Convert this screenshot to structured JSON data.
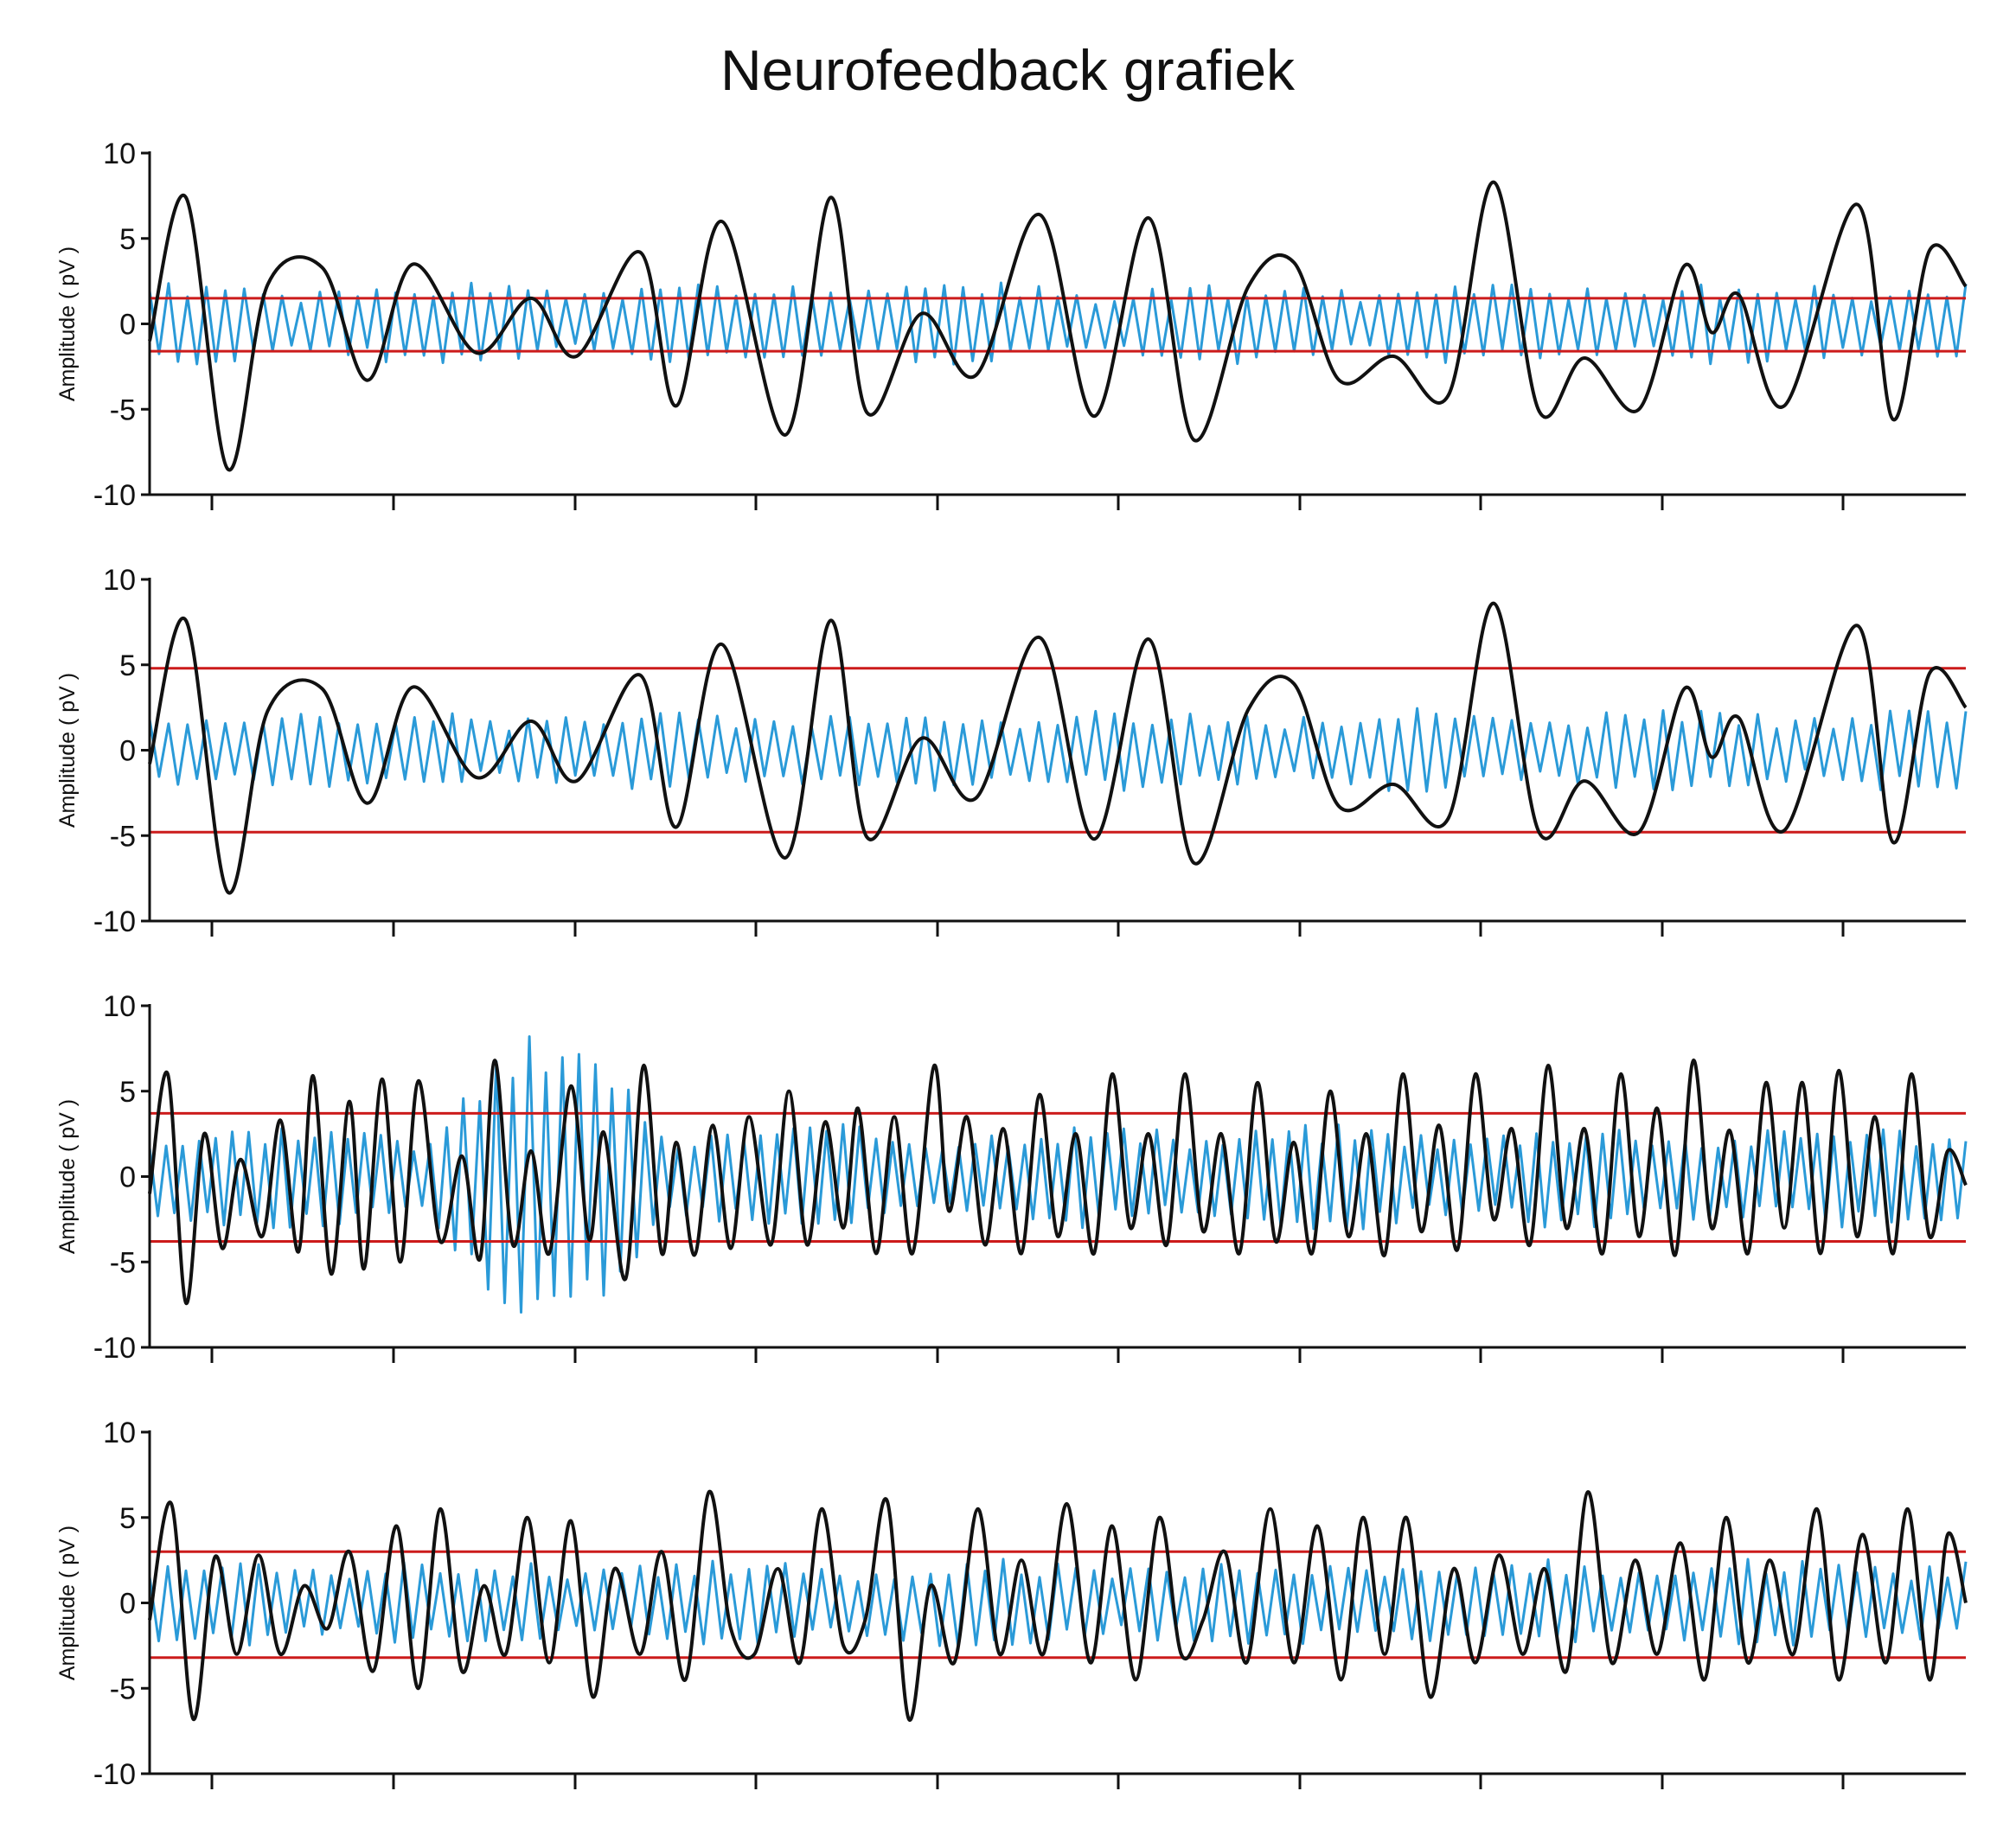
{
  "title": "Neurofeedback grafiek",
  "colors": {
    "raw_signal": "#2a9ad8",
    "filtered_signal": "#111111",
    "threshold": "#cc1b1b",
    "axis": "#111111"
  },
  "chart_data": [
    {
      "type": "line",
      "ylabel": "Amplitude ( pV )",
      "ylim": [
        -10,
        10
      ],
      "yticks": [
        "10",
        "5",
        "0",
        "-5",
        "-10"
      ],
      "xlim": [
        0,
        1
      ],
      "x_tick_count": 10,
      "thresholds": [
        1.5,
        -1.6
      ],
      "series": [
        {
          "role": "raw",
          "amplitude": 1.4,
          "peak_amplitude": 2.6,
          "cycles": 96,
          "seed": 1
        },
        {
          "role": "filtered",
          "x": [
            0.0,
            0.02,
            0.043,
            0.065,
            0.095,
            0.12,
            0.145,
            0.18,
            0.21,
            0.235,
            0.27,
            0.29,
            0.315,
            0.35,
            0.375,
            0.395,
            0.425,
            0.455,
            0.49,
            0.52,
            0.55,
            0.575,
            0.605,
            0.63,
            0.655,
            0.685,
            0.715,
            0.74,
            0.765,
            0.79,
            0.82,
            0.845,
            0.86,
            0.875,
            0.9,
            0.94,
            0.96,
            0.98,
            1.0
          ],
          "y": [
            -1.0,
            7.4,
            -8.5,
            2.3,
            3.3,
            -3.3,
            3.5,
            -1.7,
            1.5,
            -1.9,
            4.2,
            -4.8,
            6.0,
            -6.5,
            7.4,
            -5.2,
            0.6,
            -3.0,
            6.4,
            -5.4,
            6.2,
            -6.8,
            2.2,
            3.6,
            -3.3,
            -1.9,
            -4.2,
            8.3,
            -5.1,
            -2.0,
            -5.0,
            3.4,
            -0.5,
            1.7,
            -4.8,
            7.0,
            -5.6,
            4.3,
            2.2
          ]
        }
      ]
    },
    {
      "type": "line",
      "ylabel": "Amplitude ( pV )",
      "ylim": [
        -10,
        10
      ],
      "yticks": [
        "10",
        "5",
        "0",
        "-5",
        "-10"
      ],
      "xlim": [
        0,
        1
      ],
      "x_tick_count": 10,
      "thresholds": [
        4.8,
        -4.8
      ],
      "series": [
        {
          "role": "raw",
          "amplitude": 1.4,
          "peak_amplitude": 2.6,
          "cycles": 96,
          "seed": 2
        },
        {
          "role": "filtered",
          "x": [
            0.0,
            0.02,
            0.043,
            0.065,
            0.095,
            0.12,
            0.145,
            0.18,
            0.21,
            0.235,
            0.27,
            0.29,
            0.315,
            0.35,
            0.375,
            0.395,
            0.425,
            0.455,
            0.49,
            0.52,
            0.55,
            0.575,
            0.605,
            0.63,
            0.655,
            0.685,
            0.715,
            0.74,
            0.765,
            0.79,
            0.82,
            0.845,
            0.86,
            0.875,
            0.9,
            0.94,
            0.96,
            0.98,
            1.0
          ],
          "y": [
            -0.8,
            7.6,
            -8.3,
            2.3,
            3.6,
            -3.1,
            3.7,
            -1.6,
            1.7,
            -1.8,
            4.4,
            -4.5,
            6.2,
            -6.3,
            7.6,
            -5.1,
            0.7,
            -2.8,
            6.6,
            -5.2,
            6.5,
            -6.6,
            2.4,
            3.9,
            -3.3,
            -2.0,
            -4.0,
            8.6,
            -4.8,
            -1.8,
            -4.8,
            3.6,
            -0.4,
            1.9,
            -4.7,
            7.3,
            -5.4,
            4.5,
            2.5
          ]
        }
      ]
    },
    {
      "type": "line",
      "ylabel": "Amplitude ( pV )",
      "ylim": [
        -10,
        10
      ],
      "yticks": [
        "10",
        "5",
        "0",
        "-5",
        "-10"
      ],
      "xlim": [
        0,
        1
      ],
      "x_tick_count": 10,
      "thresholds": [
        3.7,
        -3.8
      ],
      "series": [
        {
          "role": "raw",
          "amplitude": 1.8,
          "peak_amplitude": 8.5,
          "cycles": 110,
          "seed": 3
        },
        {
          "role": "filtered",
          "x": [
            0.0,
            0.01,
            0.02,
            0.03,
            0.04,
            0.05,
            0.062,
            0.072,
            0.082,
            0.09,
            0.1,
            0.11,
            0.118,
            0.128,
            0.138,
            0.148,
            0.16,
            0.172,
            0.182,
            0.19,
            0.2,
            0.21,
            0.22,
            0.232,
            0.242,
            0.25,
            0.262,
            0.272,
            0.282,
            0.29,
            0.3,
            0.31,
            0.32,
            0.33,
            0.342,
            0.352,
            0.362,
            0.372,
            0.382,
            0.39,
            0.4,
            0.41,
            0.42,
            0.432,
            0.44,
            0.45,
            0.46,
            0.47,
            0.48,
            0.49,
            0.5,
            0.51,
            0.52,
            0.53,
            0.54,
            0.55,
            0.56,
            0.57,
            0.58,
            0.59,
            0.6,
            0.61,
            0.62,
            0.63,
            0.64,
            0.65,
            0.66,
            0.67,
            0.68,
            0.69,
            0.7,
            0.71,
            0.72,
            0.73,
            0.74,
            0.75,
            0.76,
            0.77,
            0.78,
            0.79,
            0.8,
            0.81,
            0.82,
            0.83,
            0.84,
            0.85,
            0.86,
            0.87,
            0.88,
            0.89,
            0.9,
            0.91,
            0.92,
            0.93,
            0.94,
            0.95,
            0.96,
            0.97,
            0.98,
            0.99,
            1.0
          ],
          "y": [
            -1.0,
            6.0,
            -7.4,
            2.5,
            -4.2,
            1.0,
            -3.5,
            3.3,
            -4.4,
            5.9,
            -5.7,
            4.4,
            -5.4,
            5.7,
            -5.0,
            5.6,
            -3.8,
            1.2,
            -4.8,
            6.8,
            -4.0,
            1.5,
            -4.5,
            5.3,
            -3.7,
            2.6,
            -6.0,
            6.5,
            -4.5,
            2.0,
            -4.6,
            3.0,
            -4.2,
            3.5,
            -4.0,
            5.0,
            -4.0,
            3.2,
            -3.0,
            4.0,
            -4.5,
            3.5,
            -4.5,
            6.5,
            -2.0,
            3.5,
            -4.0,
            2.8,
            -4.5,
            4.8,
            -3.5,
            2.5,
            -4.5,
            6.0,
            -3.0,
            2.5,
            -4.0,
            6.0,
            -3.2,
            2.5,
            -4.5,
            5.5,
            -3.8,
            2.0,
            -4.5,
            5.0,
            -3.5,
            2.5,
            -4.6,
            6.0,
            -3.2,
            3.0,
            -4.3,
            6.0,
            -2.5,
            2.8,
            -4.0,
            6.5,
            -3.0,
            2.8,
            -4.5,
            6.0,
            -3.5,
            4.0,
            -4.6,
            6.8,
            -3.0,
            2.7,
            -4.5,
            5.5,
            -3.0,
            5.5,
            -4.5,
            6.2,
            -3.5,
            3.5,
            -4.5,
            6.0,
            -3.5,
            1.5,
            -0.5
          ]
        }
      ]
    },
    {
      "type": "line",
      "ylabel": "Amplitude ( pV )",
      "ylim": [
        -10,
        10
      ],
      "yticks": [
        "10",
        "5",
        "0",
        "-5",
        "-10"
      ],
      "xlim": [
        0,
        1
      ],
      "x_tick_count": 10,
      "thresholds": [
        3.0,
        -3.2
      ],
      "series": [
        {
          "role": "raw",
          "amplitude": 1.5,
          "peak_amplitude": 3.2,
          "cycles": 100,
          "seed": 4
        },
        {
          "role": "filtered",
          "x": [
            0.0,
            0.012,
            0.024,
            0.036,
            0.048,
            0.06,
            0.072,
            0.085,
            0.098,
            0.11,
            0.123,
            0.136,
            0.148,
            0.16,
            0.172,
            0.184,
            0.196,
            0.208,
            0.22,
            0.232,
            0.244,
            0.256,
            0.27,
            0.282,
            0.295,
            0.308,
            0.32,
            0.333,
            0.346,
            0.358,
            0.37,
            0.382,
            0.394,
            0.406,
            0.418,
            0.43,
            0.443,
            0.456,
            0.468,
            0.48,
            0.492,
            0.505,
            0.518,
            0.53,
            0.543,
            0.556,
            0.568,
            0.58,
            0.592,
            0.604,
            0.617,
            0.63,
            0.643,
            0.656,
            0.668,
            0.68,
            0.692,
            0.705,
            0.718,
            0.73,
            0.743,
            0.756,
            0.768,
            0.78,
            0.792,
            0.805,
            0.818,
            0.83,
            0.843,
            0.856,
            0.868,
            0.88,
            0.892,
            0.905,
            0.918,
            0.93,
            0.943,
            0.956,
            0.968,
            0.98,
            0.99,
            1.0
          ],
          "y": [
            -1.0,
            5.8,
            -6.8,
            2.7,
            -3.0,
            2.8,
            -3.0,
            1.0,
            -1.5,
            3.0,
            -4.0,
            4.5,
            -5.0,
            5.5,
            -4.0,
            1.0,
            -3.0,
            5.0,
            -3.5,
            4.8,
            -5.5,
            2.0,
            -3.0,
            3.0,
            -4.5,
            6.5,
            -1.5,
            -3.0,
            2.0,
            -3.5,
            5.5,
            -2.5,
            -1.0,
            6.0,
            -6.8,
            1.0,
            -3.5,
            5.5,
            -3.0,
            2.5,
            -3.0,
            5.8,
            -3.5,
            4.5,
            -4.5,
            5.0,
            -3.0,
            -1.0,
            3.0,
            -3.5,
            5.5,
            -3.5,
            4.5,
            -4.5,
            5.0,
            -3.0,
            5.0,
            -5.5,
            2.0,
            -3.5,
            2.8,
            -3.0,
            2.0,
            -4.0,
            6.5,
            -3.5,
            2.5,
            -3.0,
            3.5,
            -4.5,
            5.0,
            -3.5,
            2.5,
            -3.0,
            5.5,
            -4.5,
            4.0,
            -3.5,
            5.5,
            -4.5,
            4.0,
            0.0
          ]
        }
      ]
    }
  ]
}
